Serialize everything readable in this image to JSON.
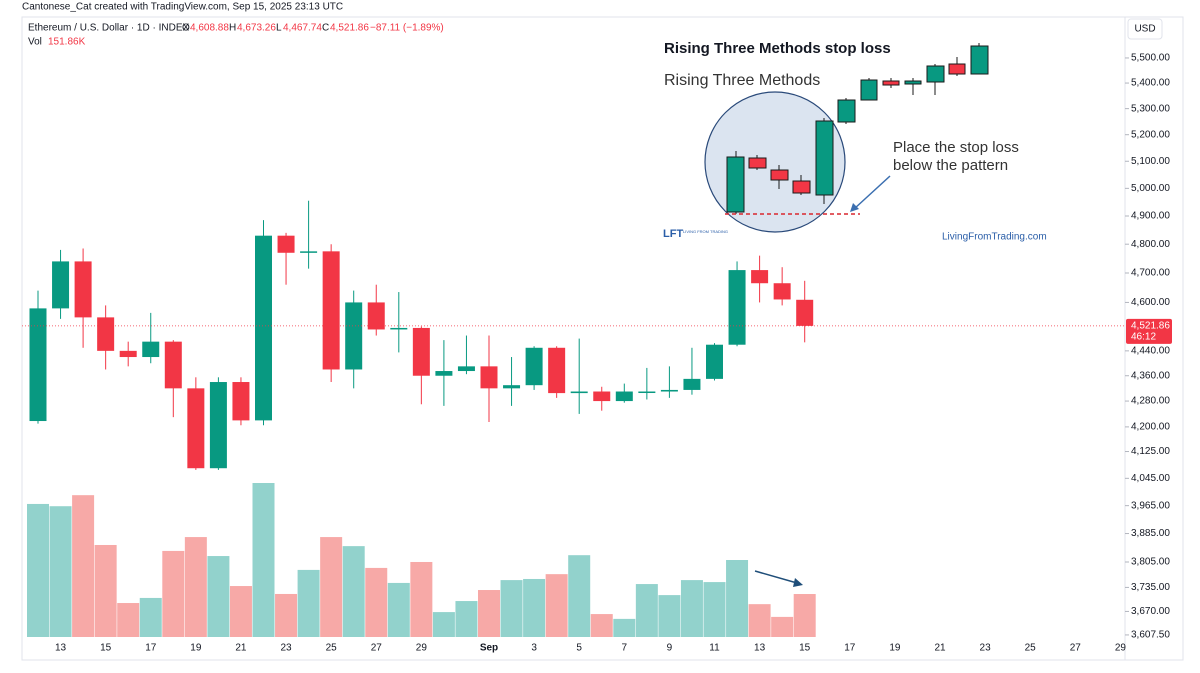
{
  "chart_data": {
    "type": "candlestick",
    "header": "Cantonese_Cat created with TradingView.com, Sep 15, 2025 23:13 UTC",
    "symbol": "Ethereum / U.S. Dollar · 1D · INDEX",
    "legend": [
      {
        "key": "O",
        "value": "4,608.88"
      },
      {
        "key": "H",
        "value": "4,673.26"
      },
      {
        "key": "L",
        "value": "4,467.74"
      },
      {
        "key": "C",
        "value": "4,521.86"
      }
    ],
    "change": "−87.11 (−1.89%)",
    "volume_legend": {
      "key": "Vol",
      "value": "151.86K"
    },
    "currency": "USD",
    "last_price_label": "4,521.86",
    "countdown": "46:12",
    "log_scale": true,
    "up_color": "#089981",
    "down_color": "#f23645",
    "volume_up_color": "#92d2cc",
    "volume_down_color": "#f7a9a7",
    "categories": [
      null,
      "13",
      null,
      "15",
      null,
      "17",
      null,
      "19",
      null,
      "21",
      null,
      "23",
      null,
      "25",
      null,
      "27",
      null,
      "29",
      null,
      null,
      "Sep",
      null,
      "3",
      null,
      "5",
      null,
      "7",
      null,
      "9",
      null,
      "11",
      null,
      "13",
      null,
      "15",
      null,
      "17",
      null,
      "19",
      null,
      "21",
      null,
      "23",
      null,
      "25",
      null,
      "27",
      null,
      "29"
    ],
    "open": [
      4218,
      4580,
      4740,
      4550,
      4440,
      4420,
      4470,
      4320,
      4075,
      4340,
      4220,
      4830,
      4770,
      4775,
      4380,
      4600,
      4510,
      4515,
      4360,
      4375,
      4390,
      4320,
      4330,
      4450,
      4305,
      4310,
      4280,
      4308,
      4310,
      4315,
      4350,
      4460,
      4710,
      4665,
      4608.88,
      null,
      null,
      null,
      null,
      null,
      null,
      null,
      null,
      null,
      null,
      null,
      null,
      null,
      null
    ],
    "high": [
      4640,
      4780,
      4785,
      4590,
      4470,
      4565,
      4475,
      4355,
      4355,
      4355,
      4885,
      4840,
      4955,
      4800,
      4640,
      4660,
      4635,
      4520,
      4475,
      4490,
      4490,
      4420,
      4455,
      4455,
      4480,
      4325,
      4335,
      4385,
      4390,
      4450,
      4465,
      4740,
      4760,
      4720,
      4673.26,
      null,
      null,
      null,
      null,
      null,
      null,
      null,
      null,
      null,
      null,
      null,
      null,
      null,
      null
    ],
    "low": [
      4210,
      4545,
      4450,
      4380,
      4390,
      4400,
      4230,
      4070,
      4070,
      4205,
      4205,
      4660,
      4715,
      4340,
      4320,
      4490,
      4435,
      4270,
      4265,
      4365,
      4215,
      4265,
      4315,
      4290,
      4240,
      4250,
      4275,
      4285,
      4290,
      4300,
      4345,
      4455,
      4600,
      4590,
      4467.74,
      null,
      null,
      null,
      null,
      null,
      null,
      null,
      null,
      null,
      null,
      null,
      null,
      null,
      null
    ],
    "close": [
      4580,
      4740,
      4550,
      4440,
      4420,
      4470,
      4320,
      4075,
      4340,
      4220,
      4830,
      4770,
      4775,
      4380,
      4600,
      4510,
      4515,
      4360,
      4375,
      4390,
      4320,
      4330,
      4450,
      4305,
      4310,
      4280,
      4310,
      4310,
      4315,
      4350,
      4460,
      4710,
      4665,
      4610,
      4521.86,
      null,
      null,
      null,
      null,
      null,
      null,
      null,
      null,
      null,
      null,
      null,
      null,
      null,
      null
    ],
    "volume": [
      470,
      462,
      501,
      325,
      120,
      138,
      304,
      353,
      286,
      180,
      544,
      152,
      237,
      353,
      321,
      244,
      191,
      265,
      88,
      127,
      166,
      201,
      205,
      222,
      289,
      81,
      64,
      187,
      148,
      201,
      194,
      272,
      116,
      71,
      151.86,
      null,
      null,
      null,
      null,
      null,
      null,
      null,
      null,
      null,
      null,
      null,
      null,
      null,
      null
    ],
    "ylim": [
      3542,
      5663
    ],
    "yticks": [
      {
        "value": 5500,
        "label": "5,500.00"
      },
      {
        "value": 5400,
        "label": "5,400.00"
      },
      {
        "value": 5300,
        "label": "5,300.00"
      },
      {
        "value": 5200,
        "label": "5,200.00"
      },
      {
        "value": 5100,
        "label": "5,100.00"
      },
      {
        "value": 5000,
        "label": "5,000.00"
      },
      {
        "value": 4900,
        "label": "4,900.00"
      },
      {
        "value": 4800,
        "label": "4,800.00"
      },
      {
        "value": 4700,
        "label": "4,700.00"
      },
      {
        "value": 4600,
        "label": "4,600.00"
      },
      {
        "value": 4440,
        "label": "4,440.00"
      },
      {
        "value": 4360,
        "label": "4,360.00"
      },
      {
        "value": 4280,
        "label": "4,280.00"
      },
      {
        "value": 4200,
        "label": "4,200.00"
      },
      {
        "value": 4125,
        "label": "4,125.00"
      },
      {
        "value": 4045,
        "label": "4,045.00"
      },
      {
        "value": 3965,
        "label": "3,965.00"
      },
      {
        "value": 3885,
        "label": "3,885.00"
      },
      {
        "value": 3805,
        "label": "3,805.00"
      },
      {
        "value": 3735,
        "label": "3,735.00"
      },
      {
        "value": 3670,
        "label": "3,670.00"
      },
      {
        "value": 3607.5,
        "label": "3,607.50"
      }
    ],
    "annotations": {
      "title": "Rising Three Methods stop loss",
      "pattern_name": "Rising Three Methods",
      "note_line1": "Place the stop loss",
      "note_line2": "below the pattern",
      "logo": "LFT",
      "logo_sub": "LIVING FROM TRADING",
      "website": "LivingFromTrading.com"
    }
  }
}
